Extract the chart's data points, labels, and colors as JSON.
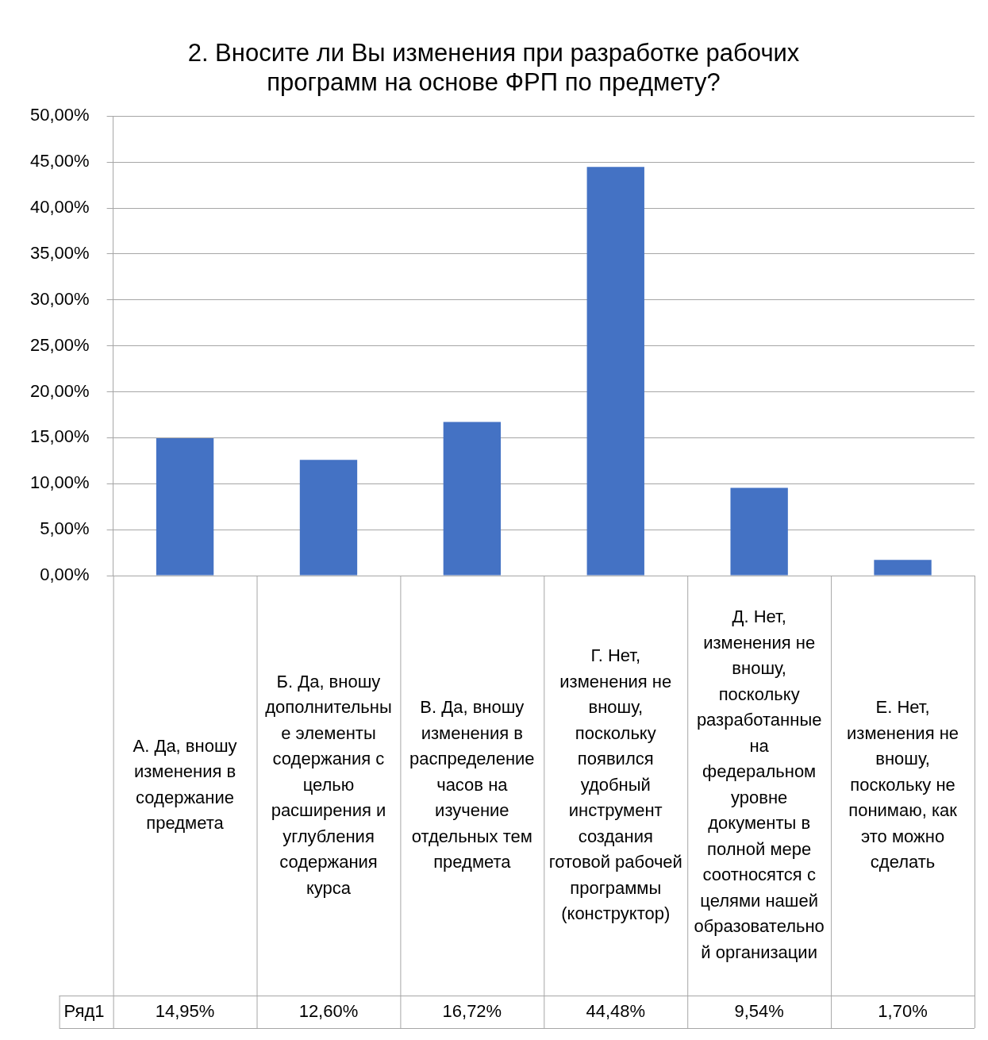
{
  "chart_data": {
    "type": "bar",
    "title": "2. Вносите ли Вы изменения при разработке рабочих программ на основе ФРП по предмету?",
    "categories": [
      "А. Да, вношу изменения в содержание предмета",
      "Б. Да, вношу дополнительные элементы содержания с целью расширения и углубления содержания курса",
      "В. Да, вношу изменения в распределение часов на изучение отдельных тем предмета",
      "Г. Нет, изменения не вношу, поскольку появился удобный инструмент создания готовой рабочей программы (конструктор)",
      "Д. Нет, изменения не вношу, поскольку разработанные на федеральном уровне документы в полной мере соотносятся с целями нашей образовательной организации",
      "Е. Нет, изменения не вношу, поскольку не понимаю, как это можно сделать"
    ],
    "series": [
      {
        "name": "Ряд1",
        "color": "#4472c4",
        "values": [
          14.95,
          12.6,
          16.72,
          44.48,
          9.54,
          1.7
        ],
        "value_labels": [
          "14,95%",
          "12,60%",
          "16,72%",
          "44,48%",
          "9,54%",
          "1,70%"
        ]
      }
    ],
    "ylim": [
      0,
      50
    ],
    "yticks": [
      {
        "value": 0,
        "label": "0,00%"
      },
      {
        "value": 5,
        "label": "5,00%"
      },
      {
        "value": 10,
        "label": "10,00%"
      },
      {
        "value": 15,
        "label": "15,00%"
      },
      {
        "value": 20,
        "label": "20,00%"
      },
      {
        "value": 25,
        "label": "25,00%"
      },
      {
        "value": 30,
        "label": "30,00%"
      },
      {
        "value": 35,
        "label": "35,00%"
      },
      {
        "value": 40,
        "label": "40,00%"
      },
      {
        "value": 45,
        "label": "45,00%"
      },
      {
        "value": 50,
        "label": "50,00%"
      }
    ],
    "grid": "y",
    "legend": false
  }
}
